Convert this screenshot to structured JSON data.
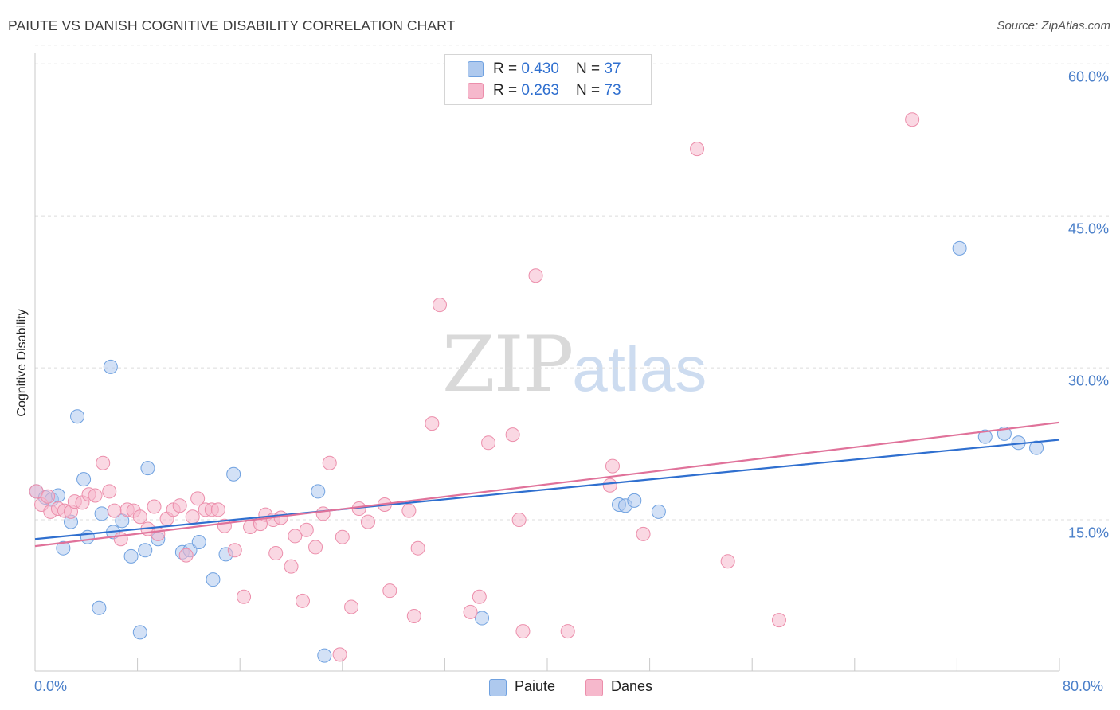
{
  "title": "PAIUTE VS DANISH COGNITIVE DISABILITY CORRELATION CHART",
  "source": "Source: ZipAtlas.com",
  "watermark": {
    "zip": "ZIP",
    "atlas": "atlas"
  },
  "legend_top": [
    {
      "r_label": "R = ",
      "r_value": "0.430",
      "n_label": "N = ",
      "n_value": "37",
      "color": "#aec9ee"
    },
    {
      "r_label": "R = ",
      "r_value": "0.263",
      "n_label": "N = ",
      "n_value": "73",
      "color": "#f6b8cc"
    }
  ],
  "legend_bottom": [
    {
      "label": "Paiute",
      "color": "#aec9ee"
    },
    {
      "label": "Danes",
      "color": "#f6b8cc"
    }
  ],
  "chart_data": {
    "type": "scatter",
    "title": "PAIUTE VS DANISH COGNITIVE DISABILITY CORRELATION CHART",
    "xlabel": "",
    "ylabel": "Cognitive Disability",
    "xlim": [
      0,
      80
    ],
    "ylim": [
      0,
      62
    ],
    "x_tick_labels": [
      "0.0%",
      "80.0%"
    ],
    "y_ticks": [
      15,
      30,
      45,
      60
    ],
    "y_tick_labels": [
      "15.0%",
      "30.0%",
      "45.0%",
      "60.0%"
    ],
    "grid": true,
    "series": [
      {
        "name": "Paiute",
        "color": "#6fa1e0",
        "fill": "#aec9ee",
        "trend": {
          "x": [
            0,
            80
          ],
          "y": [
            13.1,
            22.9
          ],
          "color": "#2f6fcf"
        },
        "points": [
          [
            0.1,
            17.8
          ],
          [
            0.8,
            17.2
          ],
          [
            1.3,
            17.0
          ],
          [
            1.8,
            17.4
          ],
          [
            2.2,
            12.2
          ],
          [
            2.8,
            14.8
          ],
          [
            3.3,
            25.2
          ],
          [
            3.8,
            19.0
          ],
          [
            4.1,
            13.3
          ],
          [
            5.0,
            6.3
          ],
          [
            5.2,
            15.6
          ],
          [
            5.9,
            30.1
          ],
          [
            6.1,
            13.8
          ],
          [
            6.8,
            14.9
          ],
          [
            7.5,
            11.4
          ],
          [
            8.6,
            12.0
          ],
          [
            8.8,
            20.1
          ],
          [
            9.6,
            13.1
          ],
          [
            11.5,
            11.8
          ],
          [
            12.1,
            12.0
          ],
          [
            12.8,
            12.8
          ],
          [
            13.9,
            9.1
          ],
          [
            14.9,
            11.6
          ],
          [
            15.5,
            19.5
          ],
          [
            8.2,
            3.9
          ],
          [
            22.1,
            17.8
          ],
          [
            22.6,
            1.6
          ],
          [
            34.9,
            5.3
          ],
          [
            45.6,
            16.5
          ],
          [
            46.1,
            16.4
          ],
          [
            46.8,
            16.9
          ],
          [
            48.7,
            15.8
          ],
          [
            72.2,
            41.8
          ],
          [
            74.2,
            23.2
          ],
          [
            75.7,
            23.5
          ],
          [
            76.8,
            22.6
          ],
          [
            78.2,
            22.1
          ]
        ]
      },
      {
        "name": "Danes",
        "color": "#ec8eab",
        "fill": "#f6b8cc",
        "trend": {
          "x": [
            0,
            80
          ],
          "y": [
            12.4,
            24.6
          ],
          "color": "#e0729a"
        },
        "points": [
          [
            0.1,
            17.8
          ],
          [
            0.5,
            16.5
          ],
          [
            1.0,
            17.3
          ],
          [
            1.2,
            15.8
          ],
          [
            1.8,
            16.1
          ],
          [
            2.3,
            15.9
          ],
          [
            2.8,
            15.8
          ],
          [
            3.1,
            16.8
          ],
          [
            3.7,
            16.7
          ],
          [
            4.2,
            17.5
          ],
          [
            4.7,
            17.4
          ],
          [
            5.3,
            20.6
          ],
          [
            5.8,
            17.8
          ],
          [
            6.2,
            15.9
          ],
          [
            6.7,
            13.1
          ],
          [
            7.2,
            16.0
          ],
          [
            7.7,
            15.9
          ],
          [
            8.2,
            15.3
          ],
          [
            8.8,
            14.1
          ],
          [
            9.3,
            16.3
          ],
          [
            9.6,
            13.6
          ],
          [
            10.3,
            15.1
          ],
          [
            10.8,
            16.0
          ],
          [
            11.3,
            16.4
          ],
          [
            11.8,
            11.5
          ],
          [
            12.3,
            15.3
          ],
          [
            12.7,
            17.1
          ],
          [
            13.3,
            16.0
          ],
          [
            13.8,
            16.0
          ],
          [
            14.3,
            16.0
          ],
          [
            14.8,
            14.4
          ],
          [
            15.6,
            12.0
          ],
          [
            16.3,
            7.4
          ],
          [
            16.8,
            14.3
          ],
          [
            17.6,
            14.6
          ],
          [
            18.0,
            15.5
          ],
          [
            18.6,
            15.0
          ],
          [
            18.8,
            11.7
          ],
          [
            19.2,
            15.2
          ],
          [
            20.0,
            10.4
          ],
          [
            20.3,
            13.4
          ],
          [
            20.9,
            7.0
          ],
          [
            21.2,
            14.0
          ],
          [
            21.9,
            12.3
          ],
          [
            22.5,
            15.6
          ],
          [
            23.0,
            20.6
          ],
          [
            23.8,
            1.7
          ],
          [
            24.0,
            13.3
          ],
          [
            24.7,
            6.4
          ],
          [
            25.3,
            16.1
          ],
          [
            26.0,
            14.8
          ],
          [
            27.3,
            16.5
          ],
          [
            27.7,
            8.0
          ],
          [
            29.2,
            15.9
          ],
          [
            29.6,
            5.5
          ],
          [
            29.9,
            12.2
          ],
          [
            31.0,
            24.5
          ],
          [
            31.6,
            36.2
          ],
          [
            34.0,
            5.9
          ],
          [
            34.7,
            7.4
          ],
          [
            35.4,
            22.6
          ],
          [
            37.3,
            23.4
          ],
          [
            37.8,
            15.0
          ],
          [
            38.1,
            4.0
          ],
          [
            39.1,
            39.1
          ],
          [
            41.6,
            4.0
          ],
          [
            44.9,
            18.4
          ],
          [
            45.1,
            20.3
          ],
          [
            47.5,
            13.6
          ],
          [
            51.7,
            51.6
          ],
          [
            54.1,
            10.9
          ],
          [
            58.1,
            5.1
          ],
          [
            68.5,
            54.5
          ]
        ]
      }
    ]
  }
}
